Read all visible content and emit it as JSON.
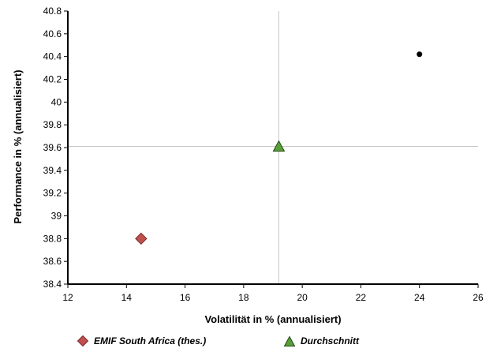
{
  "chart_data": {
    "type": "scatter",
    "xlabel": "Volatilität in % (annualisiert)",
    "ylabel": "Performance in % (annualisiert)",
    "xlim": [
      12,
      26
    ],
    "ylim": [
      38.4,
      40.8
    ],
    "x_ticks": [
      "12",
      "14",
      "16",
      "18",
      "20",
      "22",
      "24",
      "26"
    ],
    "y_ticks": [
      "38.4",
      "38.6",
      "38.8",
      "39",
      "39.2",
      "39.4",
      "39.6",
      "39.8",
      "40",
      "40.2",
      "40.4",
      "40.6",
      "40.8"
    ],
    "grid": false,
    "reference_lines": {
      "x": 19.2,
      "y": 39.61,
      "color": "#c8c8c8"
    },
    "series": [
      {
        "name": "EMIF South Africa (thes.)",
        "marker": "diamond",
        "color": "#c0504d",
        "points": [
          {
            "x": 14.5,
            "y": 38.8
          }
        ]
      },
      {
        "name": "Durchschnitt",
        "marker": "triangle",
        "color": "#5a9e3a",
        "points": [
          {
            "x": 19.2,
            "y": 39.61
          }
        ]
      },
      {
        "marker": "dot",
        "color": "#000000",
        "points": [
          {
            "x": 24.0,
            "y": 40.42
          }
        ]
      }
    ],
    "legend_position": "bottom"
  }
}
